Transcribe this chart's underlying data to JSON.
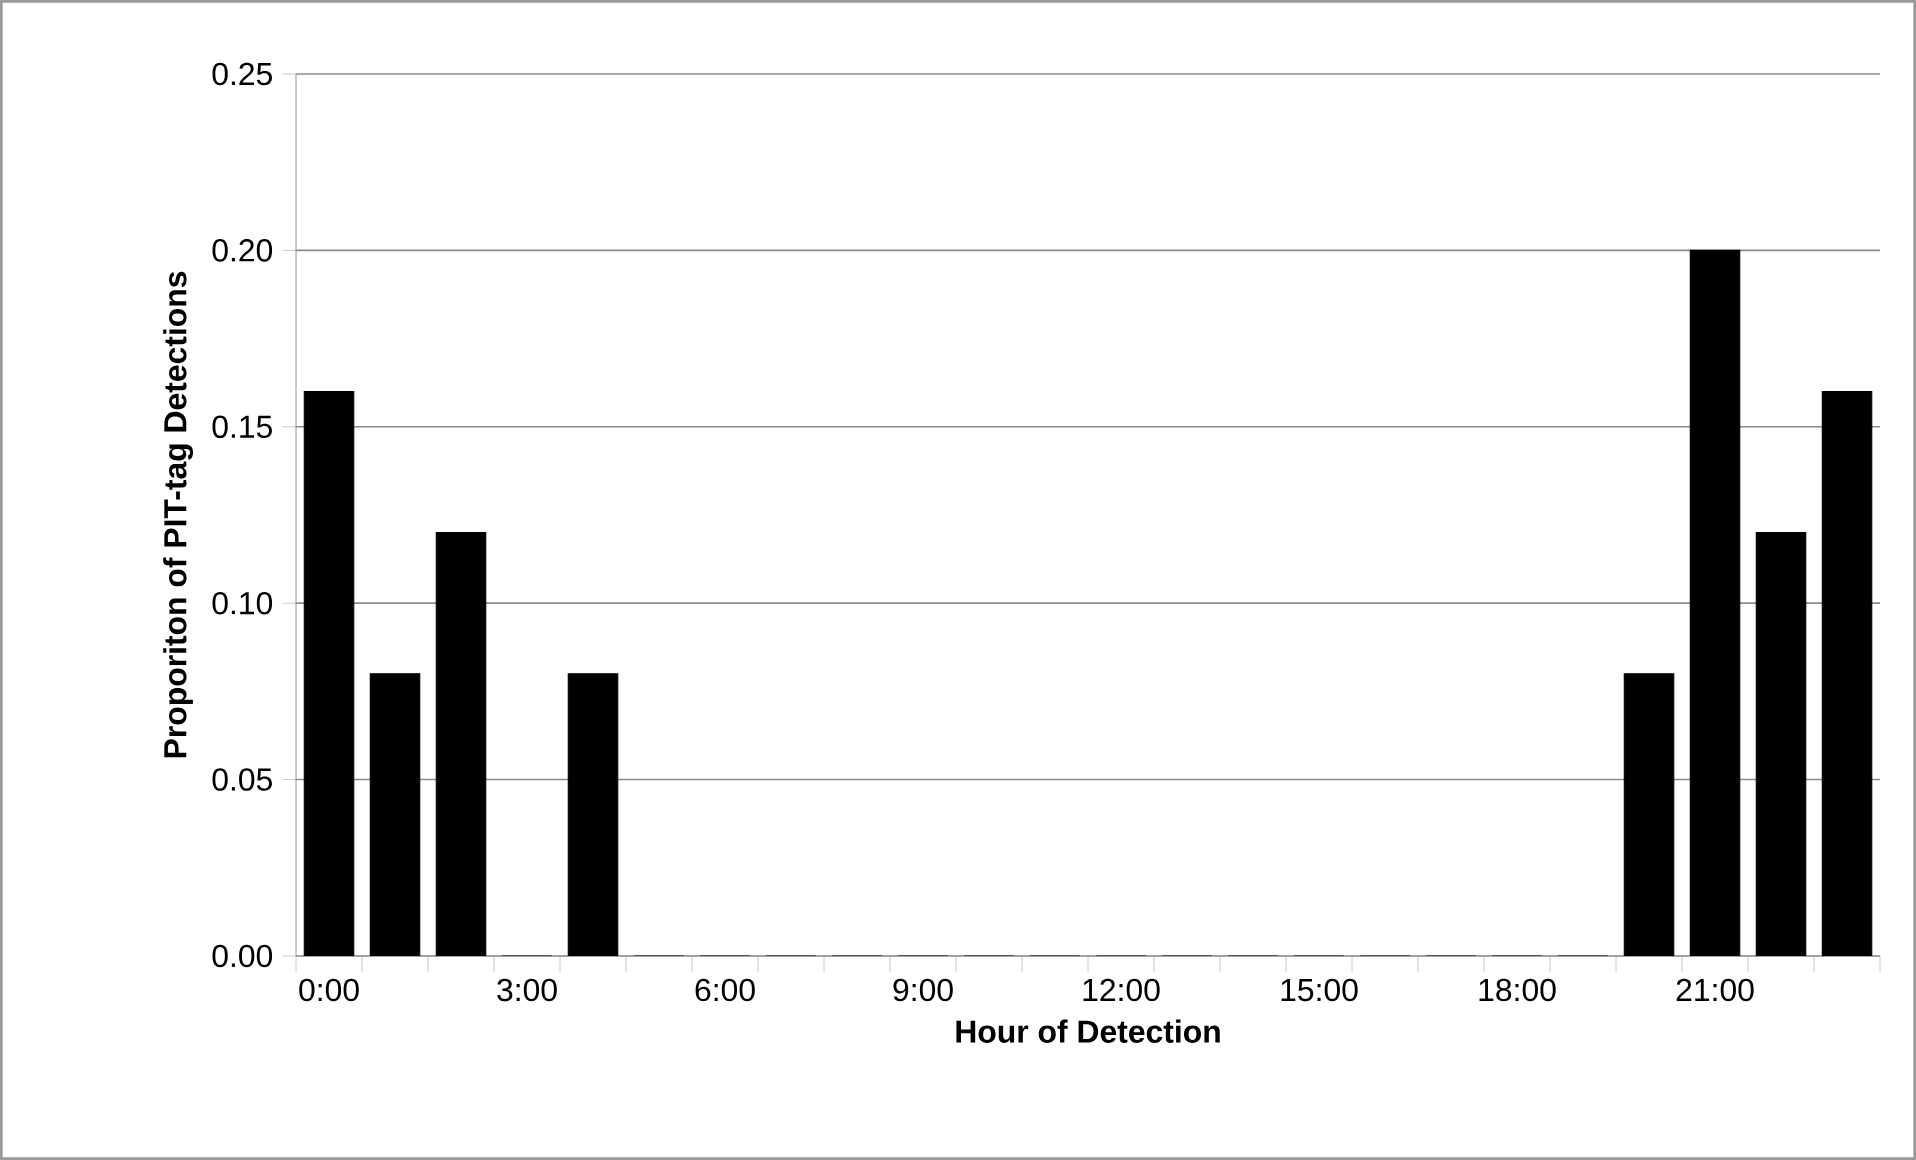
{
  "chart_data": {
    "type": "bar",
    "xlabel": "Hour of Detection",
    "ylabel": "Proporiton of PIT-tag Detections",
    "categories": [
      "0:00",
      null,
      null,
      "3:00",
      null,
      null,
      "6:00",
      null,
      null,
      "9:00",
      null,
      null,
      "12:00",
      null,
      null,
      "15:00",
      null,
      null,
      "18:00",
      null,
      null,
      "21:00",
      null,
      null
    ],
    "values": [
      0.16,
      0.08,
      0.12,
      0,
      0.08,
      0,
      0,
      0,
      0,
      0,
      0,
      0,
      0,
      0,
      0,
      0,
      0,
      0,
      0,
      0,
      0.08,
      0.2,
      0.12,
      0.16
    ],
    "color": "#000000",
    "ylim": [
      0,
      0.25
    ],
    "yticks": [
      {
        "value": 0,
        "label": "0.00"
      },
      {
        "value": 0.05,
        "label": "0.05"
      },
      {
        "value": 0.1,
        "label": "0.10"
      },
      {
        "value": 0.15,
        "label": "0.15"
      },
      {
        "value": 0.2,
        "label": "0.20"
      },
      {
        "value": 0.25,
        "label": "0.25"
      }
    ],
    "grid": "y"
  }
}
